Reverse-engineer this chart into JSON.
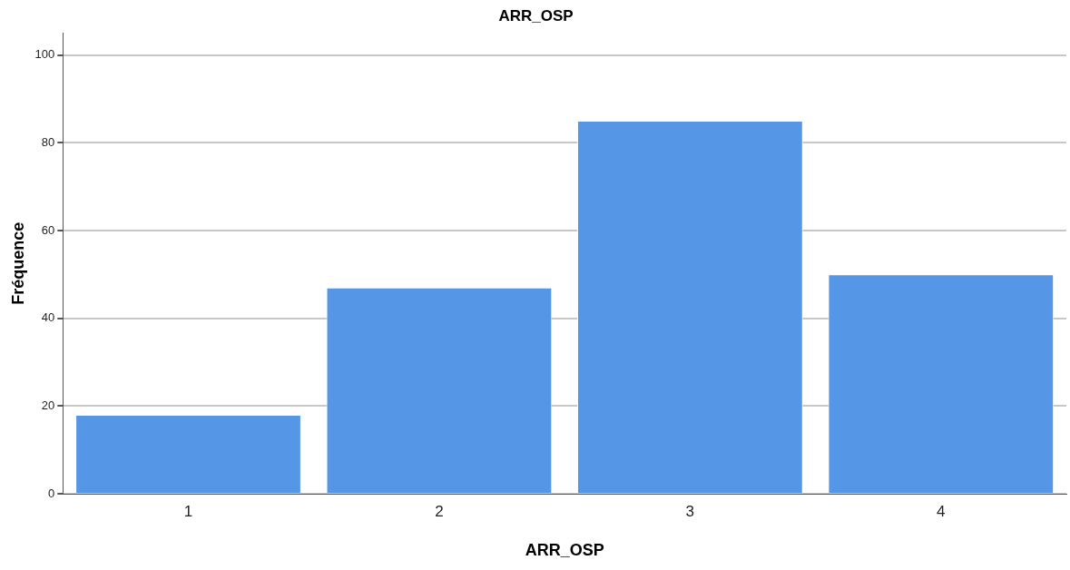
{
  "chart_data": {
    "type": "bar",
    "title": "ARR_OSP",
    "xlabel": "ARR_OSP",
    "ylabel": "Fréquence",
    "categories": [
      "1",
      "2",
      "3",
      "4"
    ],
    "values": [
      18,
      47,
      85,
      50
    ],
    "color": "#5596e6",
    "ylim": [
      0,
      105
    ],
    "yticks": [
      0,
      20,
      40,
      60,
      80,
      100
    ],
    "grid": "y",
    "legend": false
  }
}
